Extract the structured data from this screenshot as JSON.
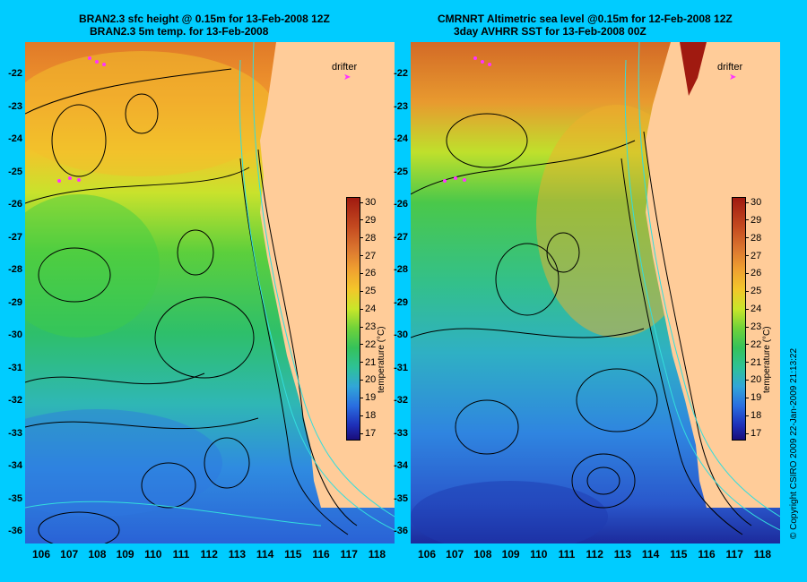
{
  "left": {
    "title_line1": "BRAN2.3 sfc height @ 0.15m for 13-Feb-2008 12Z",
    "title_line2": "BRAN2.3 5m temp. for 13-Feb-2008"
  },
  "right": {
    "title_line1": "CMRNRT Altimetric sea level  @0.15m  for 12-Feb-2008 12Z",
    "title_line2": "3day AVHRR SST for 13-Feb-2008 00Z"
  },
  "drifter_label": "drifter",
  "colorbar": {
    "label": "temperature (°C)",
    "ticks": [
      "30",
      "29",
      "28",
      "27",
      "26",
      "25",
      "24",
      "23",
      "22",
      "21",
      "20",
      "19",
      "18",
      "17"
    ]
  },
  "lat_labels": [
    "-22",
    "-23",
    "-24",
    "-25",
    "-26",
    "-27",
    "-28",
    "-29",
    "-30",
    "-31",
    "-32",
    "-33",
    "-34",
    "-35",
    "-36"
  ],
  "lon_labels": [
    "106",
    "107",
    "108",
    "109",
    "110",
    "111",
    "112",
    "113",
    "114",
    "115",
    "116",
    "117",
    "118"
  ],
  "credit": "© Copyright CSIRO 2009   22-Jan-2009 21:13:22",
  "colors": {
    "background": "#00ccff",
    "land": "#ffcc99",
    "drifter": "#ff33ff",
    "coast_isobath": "#33dddd",
    "contour": "#000000"
  }
}
